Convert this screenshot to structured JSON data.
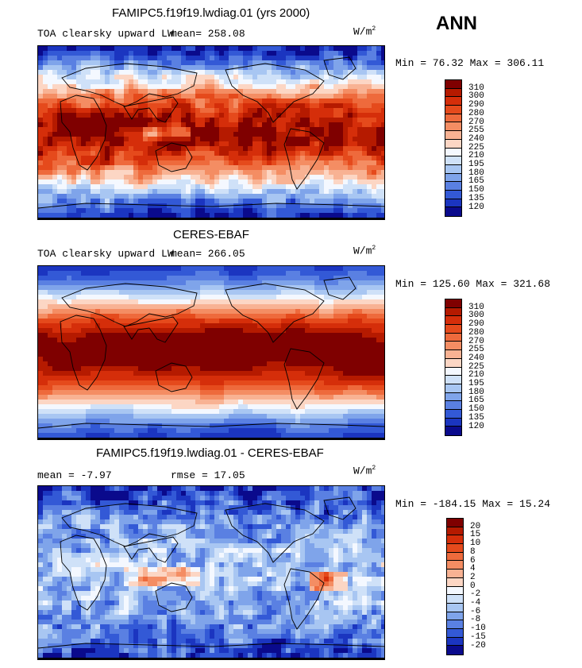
{
  "season": "ANN",
  "units_base": "W/m",
  "units_exp": "2",
  "panels": [
    {
      "title": "FAMIPC5.f19f19.lwdiag.01 (yrs 2000)",
      "variable": "TOA clearsky upward LW",
      "mean_text": "mean= 258.08",
      "minmax_text": "Min =  76.32 Max = 306.11",
      "field": "model"
    },
    {
      "title": "CERES-EBAF",
      "variable": "TOA clearsky upward LW",
      "mean_text": "mean= 266.05",
      "minmax_text": "Min = 125.60 Max = 321.68",
      "field": "obs"
    },
    {
      "title": "FAMIPC5.f19f19.lwdiag.01 - CERES-EBAF",
      "mean_text": "mean =   -7.97",
      "rmse_text": "rmse =   17.05",
      "minmax_text": "Min = -184.15 Max =  15.24",
      "field": "diff"
    }
  ],
  "colorbars": {
    "absolute": {
      "levels": [
        "310",
        "300",
        "290",
        "280",
        "270",
        "255",
        "240",
        "225",
        "210",
        "195",
        "180",
        "165",
        "150",
        "135",
        "120"
      ],
      "colors": [
        "#7f0000",
        "#b51a00",
        "#d52e0a",
        "#e54a1c",
        "#ee6a3c",
        "#f48d63",
        "#f8b293",
        "#fcd6c4",
        "#f4f8ff",
        "#cfe1f8",
        "#a8c6f2",
        "#7fa4ea",
        "#5a80e2",
        "#3359d6",
        "#1b35c0",
        "#0a0a8c"
      ]
    },
    "difference": {
      "levels": [
        "20",
        "15",
        "10",
        "8",
        "6",
        "4",
        "2",
        "0",
        "-2",
        "-4",
        "-6",
        "-8",
        "-10",
        "-15",
        "-20"
      ],
      "colors": [
        "#7f0000",
        "#b51a00",
        "#d52e0a",
        "#e54a1c",
        "#ee6a3c",
        "#f48d63",
        "#f8b293",
        "#fcd6c4",
        "#f4f8ff",
        "#cfe1f8",
        "#a8c6f2",
        "#7fa4ea",
        "#5a80e2",
        "#3359d6",
        "#1b35c0",
        "#0a0a8c"
      ]
    }
  }
}
